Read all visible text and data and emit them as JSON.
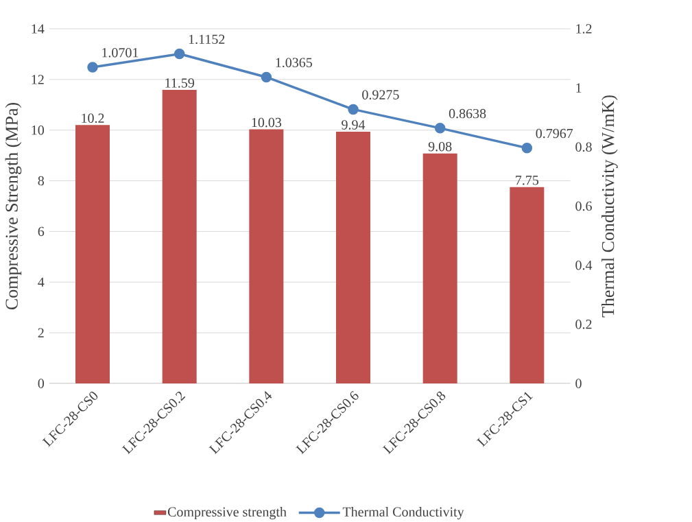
{
  "chart_data": {
    "type": "bar",
    "categories": [
      "LFC-28-CS0",
      "LFC-28-CS0.2",
      "LFC-28-CS0.4",
      "LFC-28-CS0.6",
      "LFC-28-CS0.8",
      "LFC-28-CS1"
    ],
    "series": [
      {
        "name": "Compressive strength",
        "color": "#c0504d",
        "values": [
          10.2,
          11.59,
          10.03,
          9.94,
          9.08,
          7.75
        ]
      },
      {
        "name": "Thermal Conductivity",
        "type": "line",
        "axis": "y2",
        "color": "#4f81bd",
        "values": [
          1.0701,
          1.1152,
          1.0365,
          0.9275,
          0.8638,
          0.7967
        ]
      }
    ],
    "ylabel": "Compressive Strength (MPa)",
    "y2label": "Thermal Conductivity (W/mK)",
    "ylim": [
      0,
      14
    ],
    "yticks": [
      0,
      2,
      4,
      6,
      8,
      10,
      12,
      14
    ],
    "y2lim": [
      0,
      1.2
    ],
    "y2ticks": [
      0,
      0.2,
      0.4,
      0.6,
      0.8,
      1,
      1.2
    ],
    "grid": "y",
    "legend": "bottom",
    "marker": "circle",
    "line_style": "solid",
    "data_labels": true
  }
}
